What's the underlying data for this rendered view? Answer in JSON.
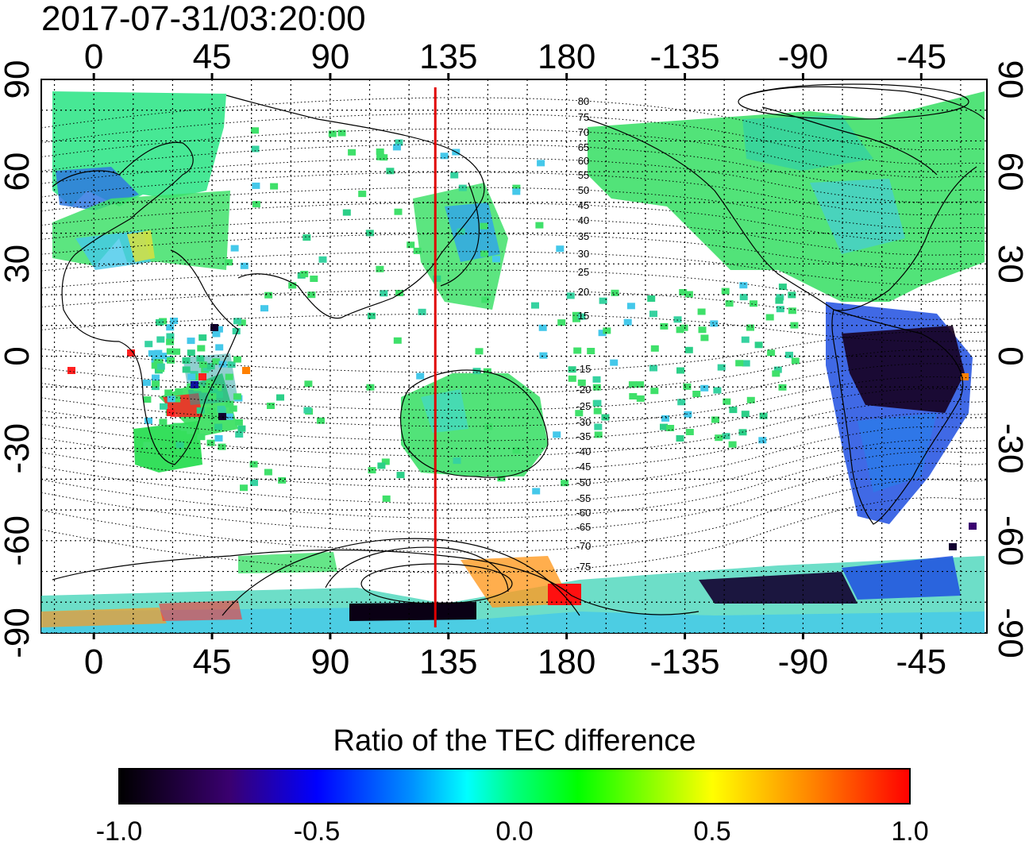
{
  "title": "2017-07-31/03:20:00",
  "map": {
    "lon_ticks_top": [
      "0",
      "45",
      "90",
      "135",
      "180",
      "-135",
      "-90",
      "-45"
    ],
    "lon_ticks_bottom": [
      "0",
      "45",
      "90",
      "135",
      "180",
      "-135",
      "-90",
      "-45"
    ],
    "lat_ticks_left": [
      "90",
      "60",
      "30",
      "0",
      "-30",
      "-60",
      "-90"
    ],
    "lat_ticks_right": [
      "90",
      "60",
      "30",
      "0",
      "-30",
      "-60",
      "-90"
    ],
    "lon_range": [
      -20,
      340
    ],
    "lat_range": [
      -90,
      90
    ],
    "grid": true,
    "marker_longitude": 130,
    "marker_color": "#e00000",
    "magnetic_latitude_labels": [
      "80",
      "75",
      "70",
      "65",
      "60",
      "55",
      "50",
      "45",
      "40",
      "35",
      "30",
      "25",
      "20",
      "15",
      "-15",
      "-20",
      "-25",
      "-30",
      "-35",
      "-40",
      "-45",
      "-50",
      "-55",
      "-60",
      "-65",
      "-70",
      "-75"
    ]
  },
  "colorbar": {
    "label": "Ratio of the TEC difference",
    "tick_labels": [
      "-1.0",
      "-0.5",
      "0.0",
      "0.5",
      "1.0"
    ],
    "range": [
      -1.0,
      1.0
    ],
    "colors": [
      "#000000",
      "#3a0070",
      "#0000ff",
      "#00ffff",
      "#00ff00",
      "#ffff00",
      "#ff8000",
      "#ff0000"
    ]
  },
  "colors": {
    "land_outline": "#000000",
    "grid": "#000000"
  }
}
